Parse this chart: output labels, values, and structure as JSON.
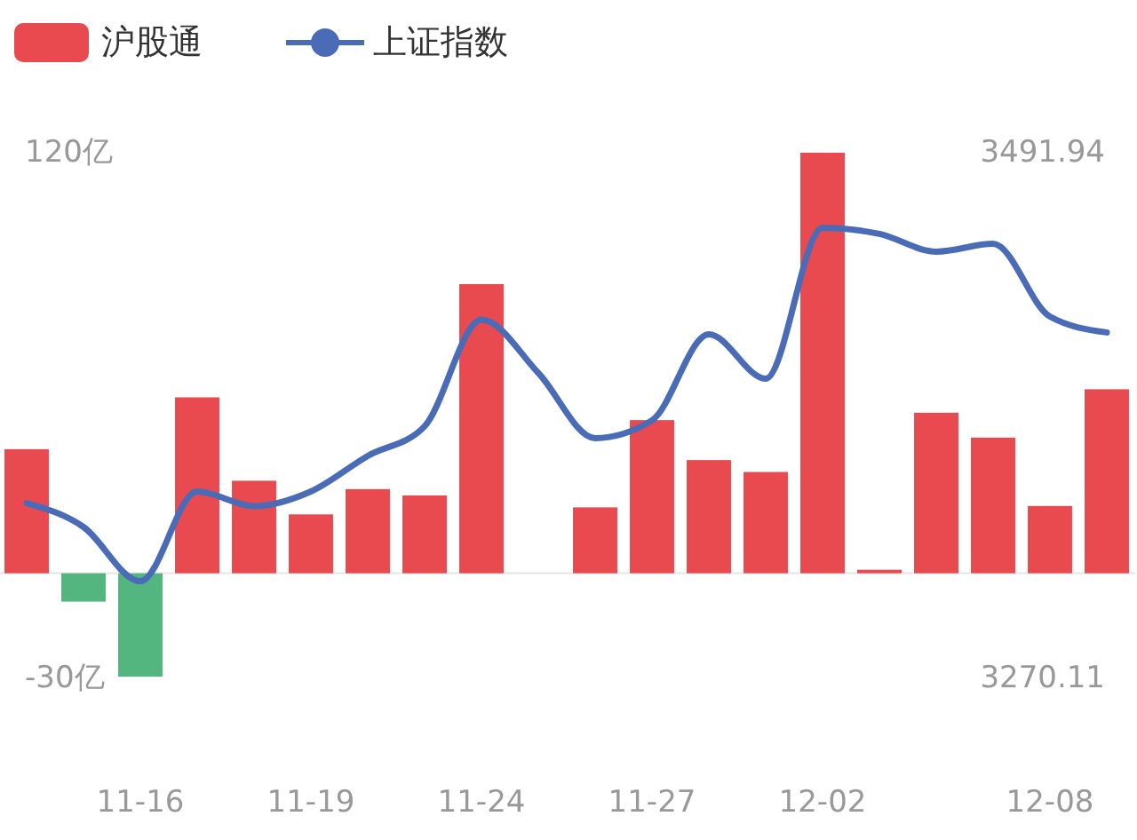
{
  "chart_data": {
    "type": "bar",
    "categories": [
      null,
      null,
      "11-16",
      null,
      null,
      "11-19",
      null,
      null,
      "11-24",
      null,
      null,
      "11-27",
      null,
      null,
      "12-02",
      null,
      null,
      null,
      "12-08",
      null
    ],
    "ylim": [
      -30,
      120
    ],
    "yticks": [
      {
        "value": 120,
        "label": "120亿"
      },
      {
        "value": -30,
        "label": "-30亿"
      }
    ],
    "y2lim": [
      3270.11,
      3491.94
    ],
    "y2ticks": [
      3491.94,
      3270.11
    ],
    "legend": "top left",
    "grid": false,
    "series": [
      {
        "name": "沪股通",
        "colors": [
          "#e84a50",
          "#52b67e",
          "#52b67e",
          "#e84a50",
          "#e84a50",
          "#e84a50",
          "#e84a50",
          "#e84a50",
          "#e84a50",
          "#e84a50",
          "#e84a50",
          "#e84a50",
          "#e84a50",
          "#e84a50",
          "#e84a50",
          "#e84a50",
          "#e84a50",
          "#e84a50",
          "#e84a50",
          "#e84a50"
        ],
        "color": "#e84a50",
        "values": [
          35.4,
          -8.1,
          -29.5,
          50.2,
          26.4,
          16.8,
          24.0,
          22.2,
          82.5,
          0,
          18.8,
          43.7,
          32.3,
          28.9,
          120,
          1.0,
          45.8,
          38.7,
          19.2,
          52.5
        ]
      },
      {
        "name": "上证指数",
        "type": "line",
        "axis": "y2",
        "color": "#4a6cb6",
        "marker": "none",
        "values": [
          3344.1,
          3334.0,
          3311.1,
          3349.0,
          3342.8,
          3349.0,
          3364.0,
          3376.5,
          3421.5,
          3399.0,
          3371.5,
          3379.0,
          3415.3,
          3396.6,
          3460.3,
          3457.7,
          3450.2,
          3453.5,
          3422.8,
          3416.1
        ]
      }
    ]
  }
}
